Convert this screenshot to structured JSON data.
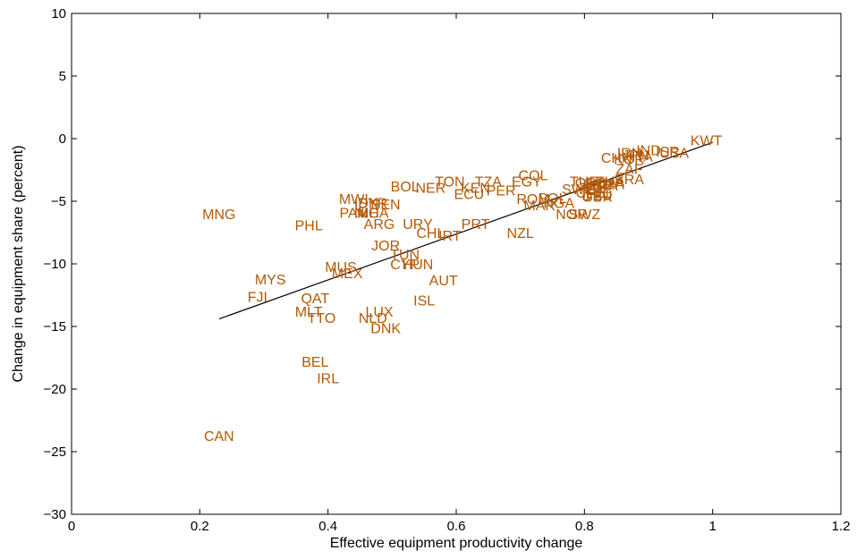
{
  "chart_data": {
    "type": "scatter",
    "title": "",
    "xlabel": "Effective equipment productivity change",
    "ylabel": "Change in equipment share (percent)",
    "xlim": [
      0,
      1.2
    ],
    "ylim": [
      -30,
      10
    ],
    "xticks": [
      0,
      0.2,
      0.4,
      0.6,
      0.8,
      1,
      1.2
    ],
    "xtick_labels": [
      "0",
      "0.2",
      "0.4",
      "0.6",
      "0.8",
      "1",
      "1.2"
    ],
    "yticks": [
      -30,
      -25,
      -20,
      -15,
      -10,
      -5,
      0,
      5,
      10
    ],
    "ytick_labels": [
      "−30",
      "−25",
      "−20",
      "−15",
      "−10",
      "−5",
      "0",
      "5",
      "10"
    ],
    "grid": false,
    "label_color": "#b35806",
    "line_color": "#000000",
    "fit_line": {
      "x": [
        0.23,
        1.0
      ],
      "y": [
        -14.4,
        -0.3
      ]
    },
    "points": [
      {
        "label": "KWT",
        "x": 0.99,
        "y": -0.1
      },
      {
        "label": "ISR",
        "x": 0.93,
        "y": -1.0
      },
      {
        "label": "USA",
        "x": 0.94,
        "y": -1.1
      },
      {
        "label": "IND",
        "x": 0.9,
        "y": -0.9
      },
      {
        "label": "IRN",
        "x": 0.87,
        "y": -1.1
      },
      {
        "label": "JPN",
        "x": 0.88,
        "y": -1.3
      },
      {
        "label": "CHN",
        "x": 0.85,
        "y": -1.5
      },
      {
        "label": "KOR",
        "x": 0.87,
        "y": -1.6
      },
      {
        "label": "ITA",
        "x": 0.89,
        "y": -1.4
      },
      {
        "label": "ZAF",
        "x": 0.87,
        "y": -2.4
      },
      {
        "label": "BRA",
        "x": 0.87,
        "y": -3.2
      },
      {
        "label": "TUR",
        "x": 0.8,
        "y": -3.4
      },
      {
        "label": "THA",
        "x": 0.84,
        "y": -3.4
      },
      {
        "label": "GRC",
        "x": 0.81,
        "y": -3.5
      },
      {
        "label": "DZA",
        "x": 0.84,
        "y": -3.6
      },
      {
        "label": "ESP",
        "x": 0.82,
        "y": -3.6
      },
      {
        "label": "FRA",
        "x": 0.83,
        "y": -3.7
      },
      {
        "label": "SGP",
        "x": 0.82,
        "y": -3.8
      },
      {
        "label": "CHE",
        "x": 0.81,
        "y": -4.3
      },
      {
        "label": "SWE",
        "x": 0.79,
        "y": -4.0
      },
      {
        "label": "FIN",
        "x": 0.82,
        "y": -4.4
      },
      {
        "label": "DEU",
        "x": 0.82,
        "y": -4.5
      },
      {
        "label": "GBR",
        "x": 0.82,
        "y": -4.6
      },
      {
        "label": "COL",
        "x": 0.72,
        "y": -2.9
      },
      {
        "label": "EGY",
        "x": 0.71,
        "y": -3.4
      },
      {
        "label": "TZA",
        "x": 0.65,
        "y": -3.4
      },
      {
        "label": "TON",
        "x": 0.59,
        "y": -3.4
      },
      {
        "label": "KEN",
        "x": 0.63,
        "y": -3.9
      },
      {
        "label": "ECU",
        "x": 0.62,
        "y": -4.4
      },
      {
        "label": "NER",
        "x": 0.56,
        "y": -3.9
      },
      {
        "label": "BOL",
        "x": 0.52,
        "y": -3.8
      },
      {
        "label": "PER",
        "x": 0.67,
        "y": -4.1
      },
      {
        "label": "ROM",
        "x": 0.72,
        "y": -4.8
      },
      {
        "label": "POL",
        "x": 0.75,
        "y": -4.7
      },
      {
        "label": "MAR",
        "x": 0.73,
        "y": -5.3
      },
      {
        "label": "NGA",
        "x": 0.76,
        "y": -5.1
      },
      {
        "label": "NOR",
        "x": 0.78,
        "y": -6.0
      },
      {
        "label": "SWZ",
        "x": 0.8,
        "y": -6.0
      },
      {
        "label": "NZL",
        "x": 0.7,
        "y": -7.5
      },
      {
        "label": "PRT",
        "x": 0.63,
        "y": -6.8
      },
      {
        "label": "IRT",
        "x": 0.59,
        "y": -7.7
      },
      {
        "label": "CHL",
        "x": 0.56,
        "y": -7.5
      },
      {
        "label": "URY",
        "x": 0.54,
        "y": -6.8
      },
      {
        "label": "SEN",
        "x": 0.49,
        "y": -5.2
      },
      {
        "label": "SYR",
        "x": 0.47,
        "y": -5.1
      },
      {
        "label": "MWI",
        "x": 0.44,
        "y": -4.8
      },
      {
        "label": "IDN",
        "x": 0.46,
        "y": -5.1
      },
      {
        "label": "PAN",
        "x": 0.44,
        "y": -5.9
      },
      {
        "label": "NIC",
        "x": 0.46,
        "y": -5.9
      },
      {
        "label": "MHA",
        "x": 0.47,
        "y": -5.9
      },
      {
        "label": "ARG",
        "x": 0.48,
        "y": -6.8
      },
      {
        "label": "PHL",
        "x": 0.37,
        "y": -6.9
      },
      {
        "label": "MNG",
        "x": 0.23,
        "y": -6.0
      },
      {
        "label": "JOR",
        "x": 0.49,
        "y": -8.5
      },
      {
        "label": "TUN",
        "x": 0.52,
        "y": -9.2
      },
      {
        "label": "CYP",
        "x": 0.52,
        "y": -10.0
      },
      {
        "label": "HUN",
        "x": 0.54,
        "y": -10.0
      },
      {
        "label": "MUS",
        "x": 0.42,
        "y": -10.2
      },
      {
        "label": "MEX",
        "x": 0.43,
        "y": -10.7
      },
      {
        "label": "AUT",
        "x": 0.58,
        "y": -11.3
      },
      {
        "label": "MYS",
        "x": 0.31,
        "y": -11.2
      },
      {
        "label": "FJI",
        "x": 0.29,
        "y": -12.6
      },
      {
        "label": "QAT",
        "x": 0.38,
        "y": -12.7
      },
      {
        "label": "ISL",
        "x": 0.55,
        "y": -12.9
      },
      {
        "label": "MLT",
        "x": 0.37,
        "y": -13.8
      },
      {
        "label": "LUX",
        "x": 0.48,
        "y": -13.8
      },
      {
        "label": "TTO",
        "x": 0.39,
        "y": -14.3
      },
      {
        "label": "NLD",
        "x": 0.47,
        "y": -14.3
      },
      {
        "label": "DNK",
        "x": 0.49,
        "y": -15.1
      },
      {
        "label": "BEL",
        "x": 0.38,
        "y": -17.8
      },
      {
        "label": "IRL",
        "x": 0.4,
        "y": -19.1
      },
      {
        "label": "CAN",
        "x": 0.23,
        "y": -23.7
      }
    ]
  }
}
